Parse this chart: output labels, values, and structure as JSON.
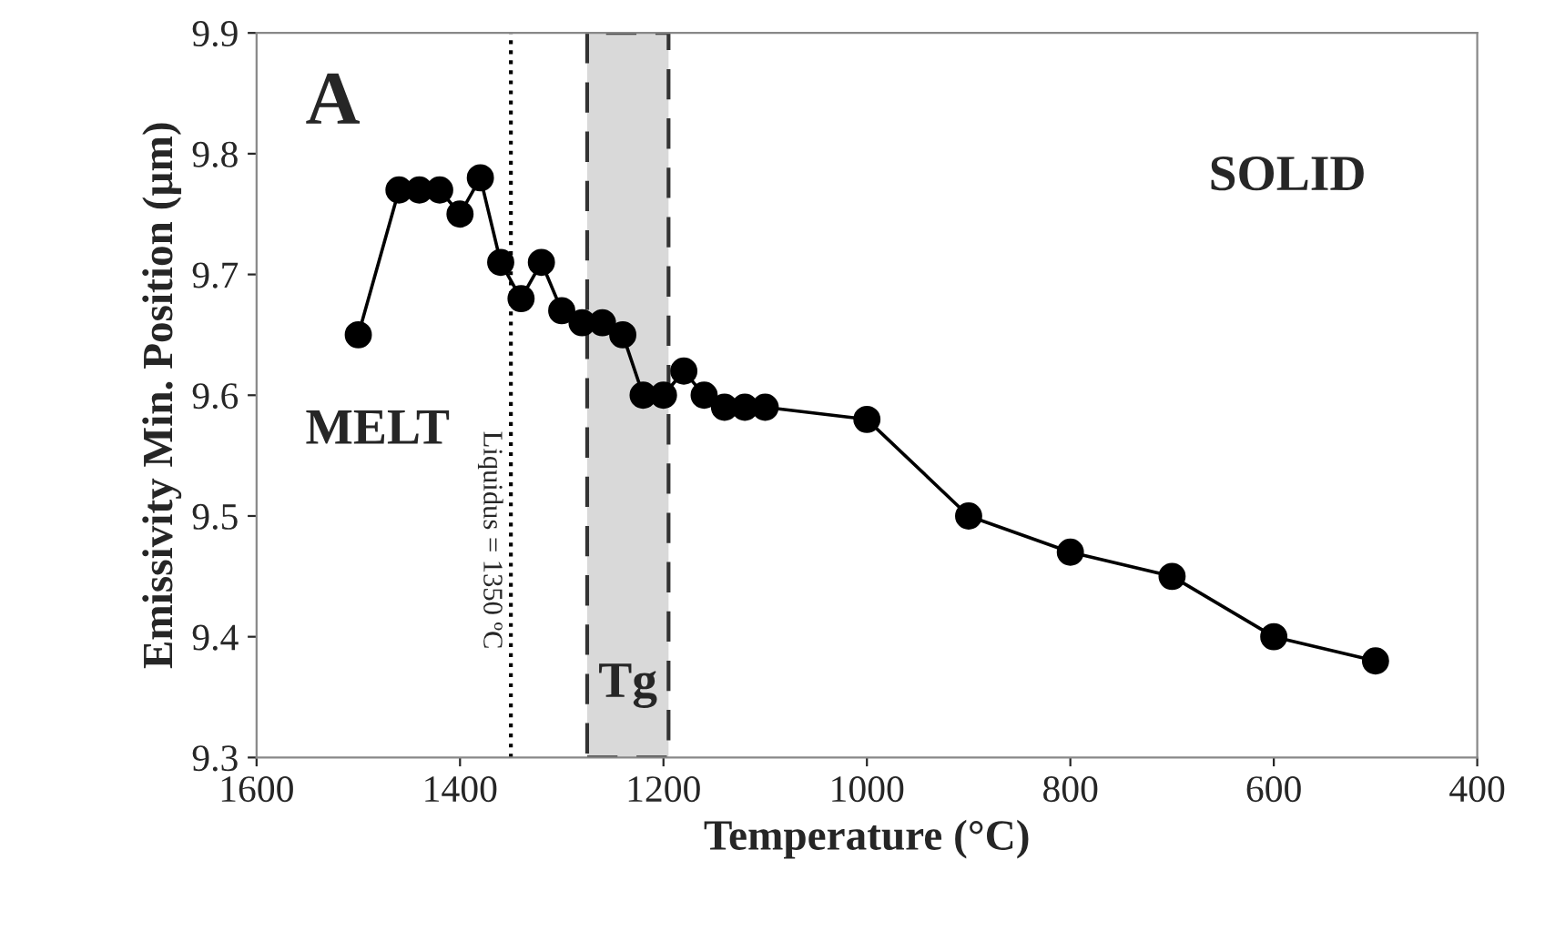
{
  "chart_data": {
    "type": "line",
    "xlabel": "Temperature (°C)",
    "ylabel": "Emissivity Min. Position (µm)",
    "x": [
      1500,
      1460,
      1440,
      1420,
      1400,
      1380,
      1360,
      1340,
      1320,
      1300,
      1280,
      1260,
      1240,
      1220,
      1200,
      1180,
      1160,
      1140,
      1120,
      1100,
      1000,
      900,
      800,
      700,
      600,
      500
    ],
    "series": [
      {
        "color": "#000000",
        "values": [
          9.65,
          9.77,
          9.77,
          9.77,
          9.75,
          9.78,
          9.71,
          9.68,
          9.71,
          9.67,
          9.66,
          9.66,
          9.65,
          9.6,
          9.6,
          9.62,
          9.6,
          9.59,
          9.59,
          9.59,
          9.58,
          9.5,
          9.47,
          9.45,
          9.4,
          9.38
        ]
      }
    ],
    "marker": "circle",
    "line_style": "solid",
    "grid": false,
    "xlim": [
      1600,
      400
    ],
    "xticks": [
      1600,
      1400,
      1200,
      1000,
      800,
      600,
      400
    ],
    "ylim": [
      9.3,
      9.9
    ],
    "yticks": [
      9.3,
      9.4,
      9.5,
      9.6,
      9.7,
      9.8,
      9.9
    ],
    "ref_lines": [
      {
        "axis": "x",
        "value": 1350,
        "label": "Liquidus = 1350 ºC",
        "line_style": "dotted",
        "color": "#000000"
      }
    ],
    "bands": [
      {
        "axis": "x",
        "from": 1275,
        "to": 1195,
        "label": "Tg",
        "color": "#d9d9d9"
      }
    ],
    "annotations": [
      {
        "text": "A"
      },
      {
        "text": "MELT"
      },
      {
        "text": "SOLID"
      }
    ]
  }
}
